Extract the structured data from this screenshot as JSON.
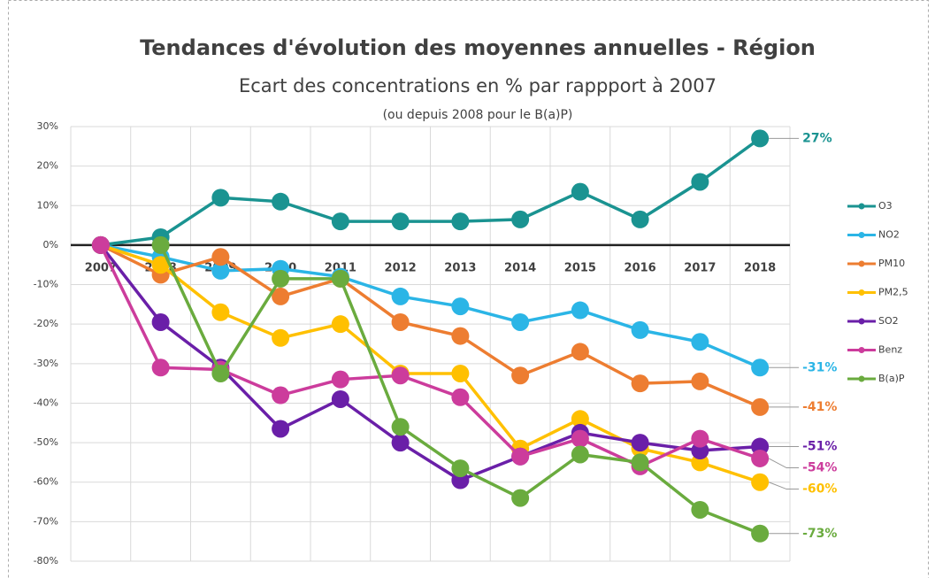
{
  "chart_data": {
    "type": "line",
    "title": "Tendances d'évolution des moyennes annuelles - Région",
    "subtitle": "Ecart des concentrations en % par rappport à 2007",
    "note": "(ou depuis 2008 pour le B(a)P)",
    "categories": [
      "2007",
      "2008",
      "2009",
      "2010",
      "2011",
      "2012",
      "2013",
      "2014",
      "2015",
      "2016",
      "2017",
      "2018"
    ],
    "ylim": [
      -80,
      30
    ],
    "yticks": [
      {
        "value": 30,
        "label": "30%"
      },
      {
        "value": 20,
        "label": "20%"
      },
      {
        "value": 10,
        "label": "10%"
      },
      {
        "value": 0,
        "label": "0%"
      },
      {
        "value": -10,
        "label": "-10%"
      },
      {
        "value": -20,
        "label": "-20%"
      },
      {
        "value": -30,
        "label": "-30%"
      },
      {
        "value": -40,
        "label": "-40%"
      },
      {
        "value": -50,
        "label": "-50%"
      },
      {
        "value": -60,
        "label": "-60%"
      },
      {
        "value": -70,
        "label": "-70%"
      },
      {
        "value": -80,
        "label": "-80%"
      }
    ],
    "grid": true,
    "legend": "right",
    "series": [
      {
        "name": "O3",
        "color": "#1a9391",
        "values": [
          0,
          2,
          12,
          11,
          6,
          6,
          6,
          6.5,
          13.5,
          6.5,
          16,
          27
        ],
        "value_labels": [
          null,
          null,
          null,
          null,
          null,
          null,
          null,
          null,
          null,
          null,
          null,
          "27%"
        ]
      },
      {
        "name": "NO2",
        "color": "#2bb5e6",
        "values": [
          0,
          -3,
          -6.5,
          -6,
          -8,
          -13,
          -15.5,
          -19.5,
          -16.5,
          -21.5,
          -24.5,
          -31
        ],
        "value_labels": [
          null,
          null,
          null,
          null,
          null,
          null,
          null,
          null,
          null,
          null,
          null,
          "-31%"
        ]
      },
      {
        "name": "PM10",
        "color": "#ed7d31",
        "values": [
          0,
          -7.5,
          -3,
          -13,
          -8.5,
          -19.5,
          -23,
          -33,
          -27,
          -35,
          -34.5,
          -41
        ],
        "value_labels": [
          null,
          null,
          null,
          null,
          null,
          null,
          null,
          null,
          null,
          null,
          null,
          "-41%"
        ]
      },
      {
        "name": "PM2,5",
        "color": "#ffc000",
        "values": [
          0,
          -5,
          -17,
          -23.5,
          -20,
          -32.5,
          -32.5,
          -51.5,
          -44,
          -51.5,
          -55,
          -60
        ],
        "value_labels": [
          null,
          null,
          null,
          null,
          null,
          null,
          null,
          null,
          null,
          null,
          null,
          "-60%"
        ]
      },
      {
        "name": "SO2",
        "color": "#6a1fa8",
        "values": [
          0,
          -19.5,
          -31,
          -46.5,
          -39,
          -50,
          -59.5,
          -53.5,
          -47.5,
          -50,
          -52,
          -51
        ],
        "value_labels": [
          null,
          null,
          null,
          null,
          null,
          null,
          null,
          null,
          null,
          null,
          null,
          "-51%"
        ]
      },
      {
        "name": "Benz",
        "color": "#cc3c9c",
        "values": [
          0,
          -31,
          -31.5,
          -38,
          -34,
          -33,
          -38.5,
          -53.5,
          -49,
          -56,
          -49,
          -54
        ],
        "value_labels": [
          null,
          null,
          null,
          null,
          null,
          null,
          null,
          null,
          null,
          null,
          null,
          "-54%"
        ]
      },
      {
        "name": "B(a)P",
        "color": "#6aab3e",
        "values": [
          null,
          0,
          -32.5,
          -8.5,
          -8.5,
          -46,
          -56.5,
          -64,
          -53,
          -55,
          -67,
          -73
        ],
        "value_labels": [
          null,
          null,
          null,
          null,
          null,
          null,
          null,
          null,
          null,
          null,
          null,
          "-73%"
        ]
      }
    ]
  }
}
